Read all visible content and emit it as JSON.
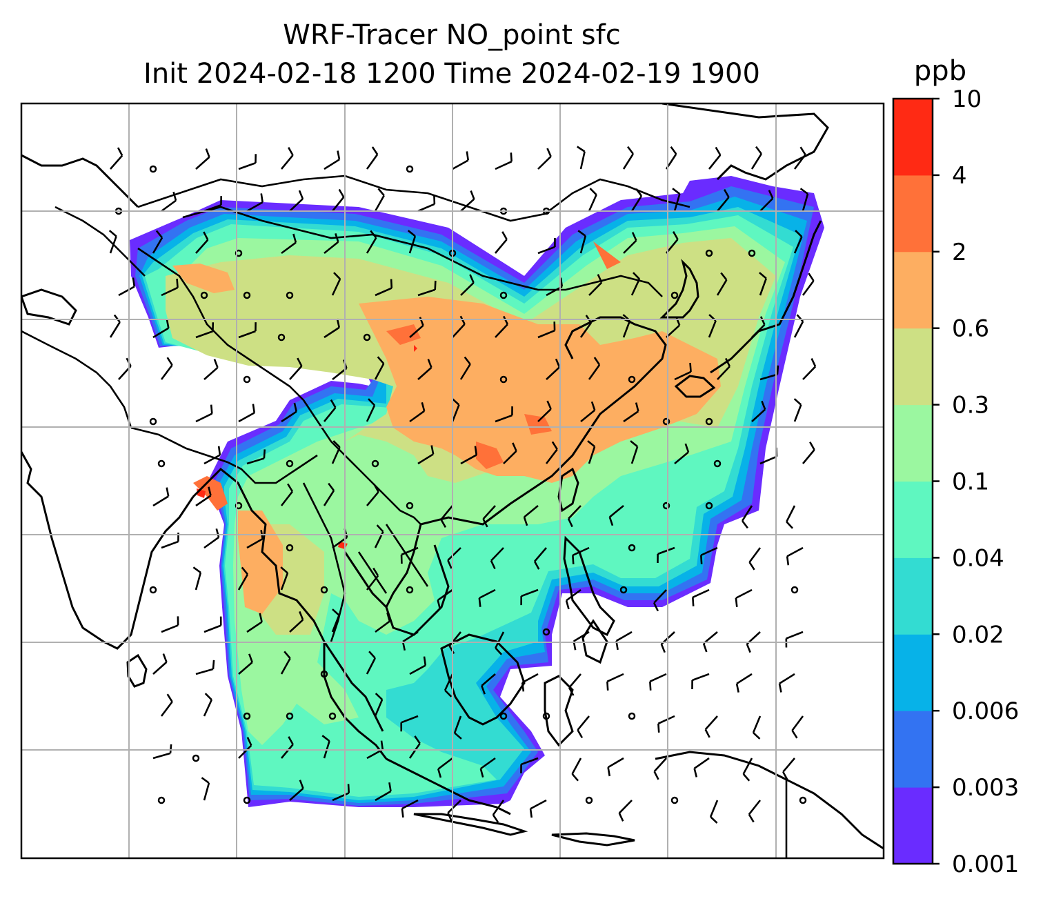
{
  "title_line1": "WRF-Tracer NO_point sfc",
  "title_line2": "Init 2024-02-18 1200 Time 2024-02-19 1900",
  "colorbar": {
    "unit": "ppb",
    "levels": [
      "0.001",
      "0.003",
      "0.006",
      "0.02",
      "0.04",
      "0.1",
      "0.3",
      "0.6",
      "2",
      "4",
      "10"
    ],
    "colors": [
      "#6a2cff",
      "#3373f2",
      "#07b2e8",
      "#33dcd2",
      "#5ff7c0",
      "#9bf7a0",
      "#cde084",
      "#fdae61",
      "#ff7139",
      "#ff2a14"
    ]
  },
  "map": {
    "field": "NO_point surface concentration",
    "overlays": [
      "coastlines",
      "country-borders",
      "lat-lon-gridlines",
      "wind-barbs"
    ],
    "colors": {
      "land-line": "#000000",
      "grid": "#b0b0b0",
      "missing": "#ffffff"
    }
  }
}
